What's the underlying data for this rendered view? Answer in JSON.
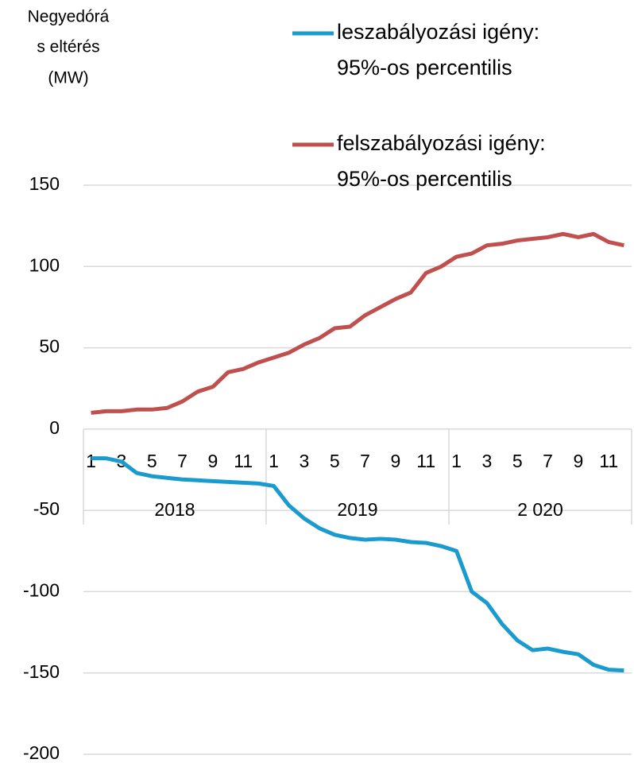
{
  "chart_data": {
    "type": "line",
    "y_label": [
      "Negyedórá",
      "s eltérés",
      "(MW)"
    ],
    "categories": [
      "1",
      null,
      "3",
      null,
      "5",
      null,
      "7",
      null,
      "9",
      null,
      "11",
      null,
      "1",
      null,
      "3",
      null,
      "5",
      null,
      "7",
      null,
      "9",
      null,
      "11",
      null,
      "1",
      null,
      "3",
      null,
      "5",
      null,
      "7",
      null,
      "9",
      null,
      "11",
      null
    ],
    "groups": [
      "2018",
      "2019",
      "2 020"
    ],
    "series": [
      {
        "name": [
          "leszabályozási igény:",
          "95%-os percentilis"
        ],
        "color": "#1a9bcf",
        "values": [
          -18,
          -18,
          -20,
          -27,
          -29,
          -30,
          -31,
          -31.5,
          -32,
          -32.5,
          -33,
          -33.5,
          -35,
          -47,
          -55,
          -61,
          -65,
          -67,
          -68,
          -67.5,
          -68,
          -69.5,
          -70,
          -72,
          -75,
          -100,
          -107,
          -120,
          -130,
          -136,
          -135,
          -137,
          -138.5,
          -145,
          -148,
          -148.5
        ]
      },
      {
        "name": [
          "felszabályozási igény:",
          "95%-os percentilis"
        ],
        "color": "#c0504d",
        "values": [
          10,
          11,
          11,
          12,
          12,
          13,
          17,
          23,
          26,
          35,
          37,
          41,
          44,
          47,
          52,
          56,
          62,
          63,
          70,
          75,
          80,
          84,
          96,
          100,
          106,
          108,
          113,
          114,
          116,
          117,
          118,
          120,
          118,
          120,
          115,
          113
        ]
      }
    ],
    "ylim": [
      -200,
      150
    ],
    "yticks": [
      -200,
      -150,
      -100,
      -50,
      0,
      50,
      100,
      150
    ],
    "grid": true,
    "legend": "top-right"
  }
}
